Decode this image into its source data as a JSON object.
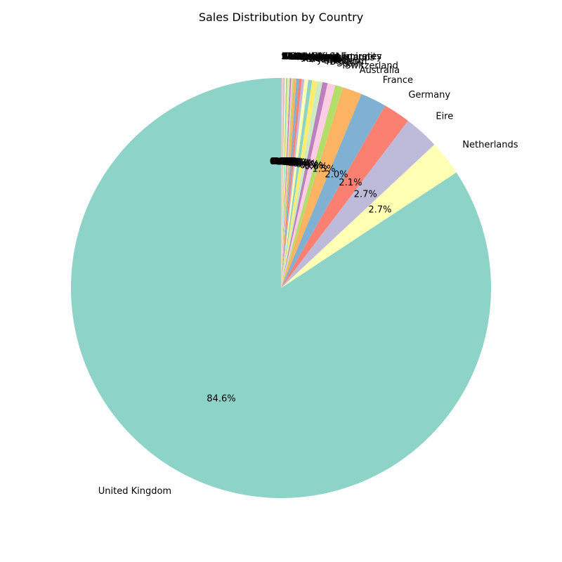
{
  "chart_data": {
    "type": "pie",
    "title": "Sales Distribution by Country",
    "start_angle_deg": 90,
    "direction": "counterclockwise",
    "slices": [
      {
        "label": "United Kingdom",
        "pct": 84.6,
        "pct_text": "84.6%",
        "color": "#8dd3c7"
      },
      {
        "label": "Netherlands",
        "pct": 2.7,
        "pct_text": "2.7%",
        "color": "#ffffb3"
      },
      {
        "label": "Eire",
        "pct": 2.7,
        "pct_text": "2.7%",
        "color": "#bebada"
      },
      {
        "label": "Germany",
        "pct": 2.1,
        "pct_text": "2.1%",
        "color": "#fb8072"
      },
      {
        "label": "France",
        "pct": 2.0,
        "pct_text": "2.0%",
        "color": "#80b1d3"
      },
      {
        "label": "Australia",
        "pct": 1.5,
        "pct_text": "1.5%",
        "color": "#fdb462"
      },
      {
        "label": "Switzerland",
        "pct": 0.6,
        "pct_text": "0.6%",
        "color": "#b3de69"
      },
      {
        "label": "Spain",
        "pct": 0.6,
        "pct_text": "0.6%",
        "color": "#fccde5"
      },
      {
        "label": "Belgium",
        "pct": 0.4,
        "pct_text": "0.4%",
        "color": "#bc80bd"
      },
      {
        "label": "Sweden",
        "pct": 0.4,
        "pct_text": "0.4%",
        "color": "#ccebc5"
      },
      {
        "label": "Japan",
        "pct": 0.4,
        "pct_text": "0.4%",
        "color": "#ffed6f"
      },
      {
        "label": "Norway",
        "pct": 0.3,
        "pct_text": "0.3%",
        "color": "#8dd3c7"
      },
      {
        "label": "Portugal",
        "pct": 0.3,
        "pct_text": "0.3%",
        "color": "#ffffb3"
      },
      {
        "label": "Finland",
        "pct": 0.2,
        "pct_text": "0.2%",
        "color": "#bebada"
      },
      {
        "label": "Channel Islands",
        "pct": 0.2,
        "pct_text": "0.2%",
        "color": "#fb8072"
      },
      {
        "label": "Denmark",
        "pct": 0.2,
        "pct_text": "0.2%",
        "color": "#80b1d3"
      },
      {
        "label": "Italy",
        "pct": 0.2,
        "pct_text": "0.2%",
        "color": "#fdb462"
      },
      {
        "label": "Cyprus",
        "pct": 0.1,
        "pct_text": "0.1%",
        "color": "#b3de69"
      },
      {
        "label": "Singapore",
        "pct": 0.1,
        "pct_text": "0.1%",
        "color": "#fccde5"
      },
      {
        "label": "Austria",
        "pct": 0.1,
        "pct_text": "0.1%",
        "color": "#bc80bd"
      },
      {
        "label": "Hong Kong",
        "pct": 0.1,
        "pct_text": "0.1%",
        "color": "#ccebc5"
      },
      {
        "label": "Israel",
        "pct": 0.1,
        "pct_text": "0.1%",
        "color": "#ffed6f"
      },
      {
        "label": "Poland",
        "pct": 0.1,
        "pct_text": "0.1%",
        "color": "#8dd3c7"
      },
      {
        "label": "Unspecified",
        "pct": 0.1,
        "pct_text": "0.1%",
        "color": "#ffffb3"
      },
      {
        "label": "Greece",
        "pct": 0.0,
        "pct_text": "0.0%",
        "color": "#bebada"
      },
      {
        "label": "Iceland",
        "pct": 0.0,
        "pct_text": "0.0%",
        "color": "#fb8072"
      },
      {
        "label": "Canada",
        "pct": 0.0,
        "pct_text": "0.0%",
        "color": "#80b1d3"
      },
      {
        "label": "Malta",
        "pct": 0.0,
        "pct_text": "0.0%",
        "color": "#fdb462"
      },
      {
        "label": "United Arab Emirates",
        "pct": 0.0,
        "pct_text": "0.0%",
        "color": "#b3de69"
      },
      {
        "label": "USA",
        "pct": 0.0,
        "pct_text": "0.0%",
        "color": "#fccde5"
      },
      {
        "label": "Lebanon",
        "pct": 0.0,
        "pct_text": "0.0%",
        "color": "#bc80bd"
      },
      {
        "label": "Lithuania",
        "pct": 0.0,
        "pct_text": "0.0%",
        "color": "#ccebc5"
      },
      {
        "label": "European Community",
        "pct": 0.0,
        "pct_text": "0.0%",
        "color": "#ffed6f"
      },
      {
        "label": "Brazil",
        "pct": 0.0,
        "pct_text": "0.0%",
        "color": "#8dd3c7"
      },
      {
        "label": "RSA",
        "pct": 0.0,
        "pct_text": "0.0%",
        "color": "#ffffb3"
      },
      {
        "label": "Czech Republic",
        "pct": 0.0,
        "pct_text": "0.0%",
        "color": "#bebada"
      },
      {
        "label": "Bahrain",
        "pct": 0.0,
        "pct_text": "0.0%",
        "color": "#fb8072"
      },
      {
        "label": "Saudi Arabia",
        "pct": 0.0,
        "pct_text": "0.0%",
        "color": "#80b1d3"
      }
    ]
  }
}
